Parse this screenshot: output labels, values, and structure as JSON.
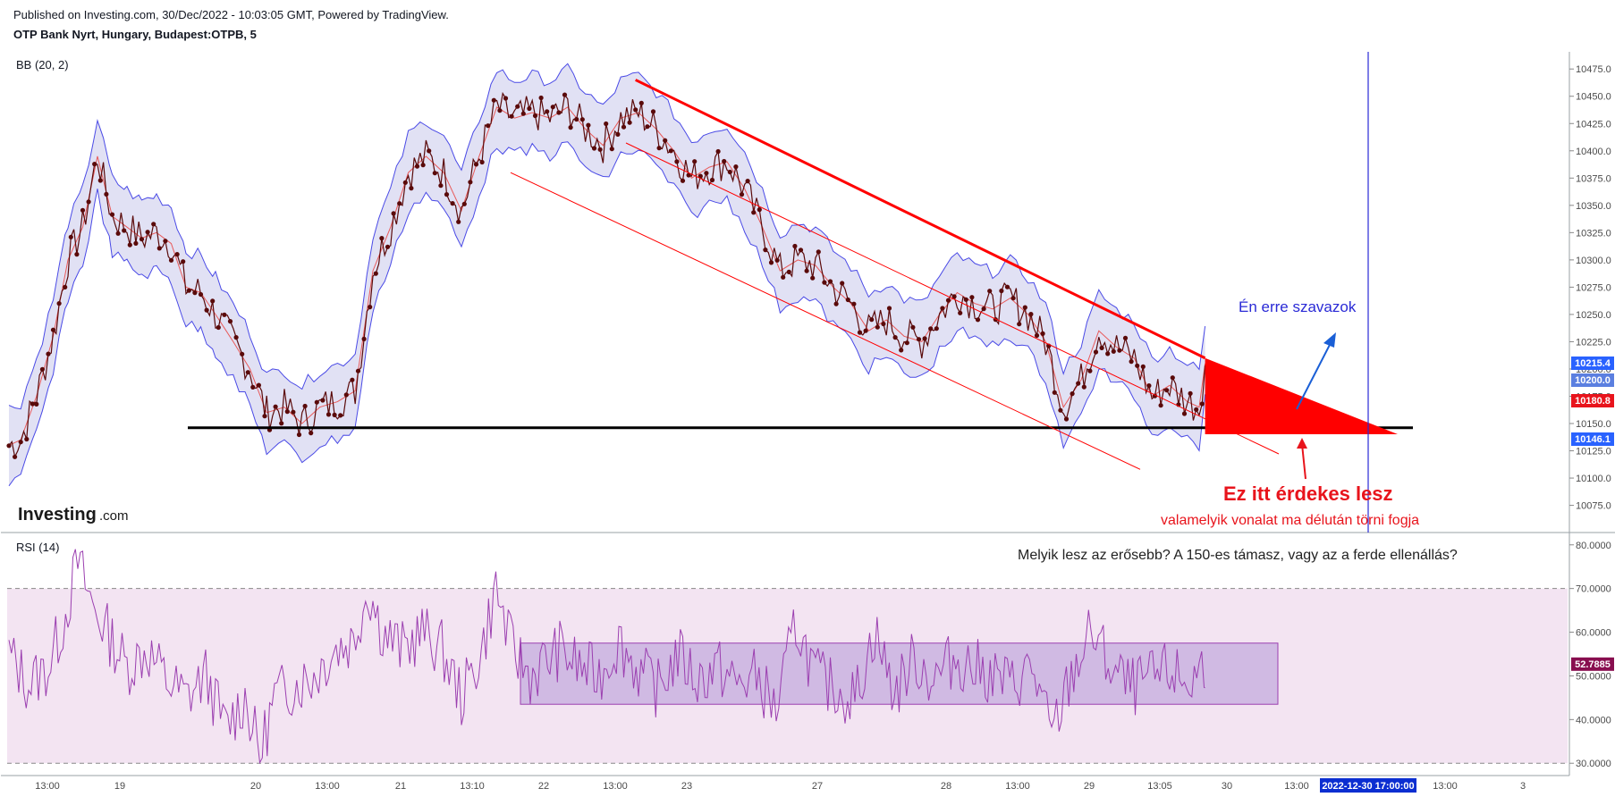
{
  "header": {
    "published": "Published on Investing.com, 30/Dec/2022 - 10:03:05 GMT, Powered by TradingView.",
    "symbol": "OTP Bank Nyrt, Hungary, Budapest:OTPB, 5"
  },
  "logo": {
    "main": "Investing",
    "suffix": ".com"
  },
  "colors": {
    "price": "#5a0a0a",
    "bb_band": "#4a4ae6",
    "bb_fill": "#dcdcf2",
    "bb_basis": "#e85a5a",
    "rsi_line": "#9b3fb0",
    "rsi_band": "#f3e4f2",
    "rsi_box": "#c9b3e0",
    "trend": "#ff0000",
    "support": "#000000",
    "vline": "#2a2ad6"
  },
  "chart_data": [
    {
      "type": "line",
      "indicator_label": "BB (20, 2)",
      "title": "",
      "ylim": [
        10055,
        10485
      ],
      "y_ticks": [
        "10475.0",
        "10450.0",
        "10425.0",
        "10400.0",
        "10375.0",
        "10350.0",
        "10325.0",
        "10300.0",
        "10275.0",
        "10250.0",
        "10225.0",
        "10200.0",
        "10175.0",
        "10150.0",
        "10125.0",
        "10100.0",
        "10075.0"
      ],
      "x_ticks": [
        "13:00",
        "19",
        "20",
        "13:00",
        "21",
        "13:10",
        "22",
        "13:00",
        "23",
        "27",
        "28",
        "13:00",
        "29",
        "13:05",
        "30",
        "13:00",
        "2022-12-30 17:00:00",
        "13:00",
        "3"
      ],
      "price_badges": [
        {
          "value": "10215.4",
          "color": "#2962ff"
        },
        {
          "value": "10200.0",
          "color": "#5b7fe0"
        },
        {
          "value": "10180.8",
          "color": "#e8141c"
        },
        {
          "value": "10146.1",
          "color": "#2962ff"
        }
      ],
      "series": [
        {
          "points": [
            [
              0,
              10130
            ],
            [
              12,
              10135
            ],
            [
              28,
              10175
            ],
            [
              45,
              10230
            ],
            [
              60,
              10300
            ],
            [
              75,
              10330
            ],
            [
              90,
              10395
            ],
            [
              105,
              10340
            ],
            [
              120,
              10330
            ],
            [
              135,
              10320
            ],
            [
              150,
              10325
            ],
            [
              165,
              10315
            ],
            [
              180,
              10275
            ],
            [
              195,
              10270
            ],
            [
              210,
              10250
            ],
            [
              228,
              10225
            ],
            [
              245,
              10200
            ],
            [
              262,
              10160
            ],
            [
              280,
              10165
            ],
            [
              298,
              10150
            ],
            [
              316,
              10165
            ],
            [
              334,
              10170
            ],
            [
              352,
              10180
            ],
            [
              370,
              10290
            ],
            [
              388,
              10330
            ],
            [
              406,
              10380
            ],
            [
              424,
              10395
            ],
            [
              442,
              10380
            ],
            [
              460,
              10345
            ],
            [
              478,
              10395
            ],
            [
              496,
              10440
            ],
            [
              514,
              10430
            ],
            [
              532,
              10435
            ],
            [
              550,
              10430
            ],
            [
              568,
              10440
            ],
            [
              586,
              10420
            ],
            [
              604,
              10405
            ],
            [
              622,
              10430
            ],
            [
              640,
              10435
            ],
            [
              658,
              10420
            ],
            [
              676,
              10400
            ],
            [
              694,
              10375
            ],
            [
              712,
              10385
            ],
            [
              730,
              10390
            ],
            [
              748,
              10365
            ],
            [
              766,
              10330
            ],
            [
              784,
              10290
            ],
            [
              802,
              10300
            ],
            [
              820,
              10295
            ],
            [
              838,
              10275
            ],
            [
              856,
              10260
            ],
            [
              874,
              10235
            ],
            [
              892,
              10245
            ],
            [
              910,
              10230
            ],
            [
              928,
              10225
            ],
            [
              946,
              10250
            ],
            [
              964,
              10270
            ],
            [
              982,
              10260
            ],
            [
              1000,
              10255
            ],
            [
              1018,
              10265
            ],
            [
              1036,
              10250
            ],
            [
              1054,
              10225
            ],
            [
              1072,
              10165
            ],
            [
              1090,
              10190
            ],
            [
              1108,
              10235
            ],
            [
              1126,
              10220
            ],
            [
              1144,
              10210
            ],
            [
              1162,
              10175
            ],
            [
              1180,
              10185
            ],
            [
              1198,
              10170
            ],
            [
              1210,
              10165
            ],
            [
              1216,
              10205
            ]
          ]
        }
      ],
      "annotations": [
        {
          "id": "vote",
          "text": "Én erre szavazok"
        },
        {
          "id": "interesting",
          "text": "Ez itt érdekes lesz"
        },
        {
          "id": "break",
          "text": "valamelyik vonalat ma délután törni fogja"
        },
        {
          "id": "question",
          "text": "Melyik lesz az erősebb? A 150-es támasz, vagy az a ferde ellenállás?"
        }
      ],
      "support_level": 10146.1,
      "resistance_line": [
        [
          637,
          10465
        ],
        [
          1216,
          10210
        ]
      ],
      "channel_lower_line": [
        [
          510,
          10380
        ],
        [
          1150,
          10108
        ]
      ]
    },
    {
      "type": "line",
      "indicator_label": "RSI (14)",
      "title": "",
      "ylim": [
        28,
        82
      ],
      "bands": [
        30,
        70
      ],
      "current_badge": {
        "value": "52.7885",
        "color": "#880e4f"
      },
      "y_ticks": [
        "80.0000",
        "70.0000",
        "60.0000",
        "50.0000",
        "40.0000",
        "30.0000"
      ],
      "range_box": {
        "x": [
          520,
          1290
        ],
        "y": [
          43.5,
          57.5
        ]
      },
      "series": [
        {
          "points": [
            [
              0,
              55
            ],
            [
              20,
              48
            ],
            [
              40,
              52
            ],
            [
              55,
              62
            ],
            [
              70,
              76
            ],
            [
              85,
              66
            ],
            [
              100,
              60
            ],
            [
              120,
              52
            ],
            [
              140,
              56
            ],
            [
              160,
              49
            ],
            [
              180,
              45
            ],
            [
              200,
              50
            ],
            [
              220,
              38
            ],
            [
              240,
              45
            ],
            [
              255,
              32
            ],
            [
              270,
              45
            ],
            [
              290,
              48
            ],
            [
              310,
              50
            ],
            [
              330,
              56
            ],
            [
              350,
              58
            ],
            [
              365,
              70
            ],
            [
              380,
              60
            ],
            [
              400,
              56
            ],
            [
              420,
              60
            ],
            [
              440,
              56
            ],
            [
              460,
              45
            ],
            [
              480,
              55
            ],
            [
              495,
              70
            ],
            [
              510,
              57
            ],
            [
              530,
              50
            ],
            [
              560,
              56
            ],
            [
              580,
              52
            ],
            [
              600,
              50
            ],
            [
              620,
              58
            ],
            [
              640,
              51
            ],
            [
              660,
              47
            ],
            [
              680,
              55
            ],
            [
              700,
              49
            ],
            [
              720,
              52
            ],
            [
              740,
              48
            ],
            [
              760,
              50
            ],
            [
              780,
              42
            ],
            [
              800,
              62
            ],
            [
              820,
              50
            ],
            [
              840,
              47
            ],
            [
              860,
              45
            ],
            [
              880,
              60
            ],
            [
              900,
              46
            ],
            [
              920,
              54
            ],
            [
              940,
              49
            ],
            [
              960,
              54
            ],
            [
              980,
              52
            ],
            [
              1000,
              50
            ],
            [
              1020,
              48
            ],
            [
              1040,
              52
            ],
            [
              1060,
              36
            ],
            [
              1080,
              50
            ],
            [
              1100,
              60
            ],
            [
              1120,
              52
            ],
            [
              1140,
              47
            ],
            [
              1160,
              49
            ],
            [
              1180,
              51
            ],
            [
              1200,
              48
            ],
            [
              1216,
              53
            ]
          ]
        }
      ]
    }
  ]
}
